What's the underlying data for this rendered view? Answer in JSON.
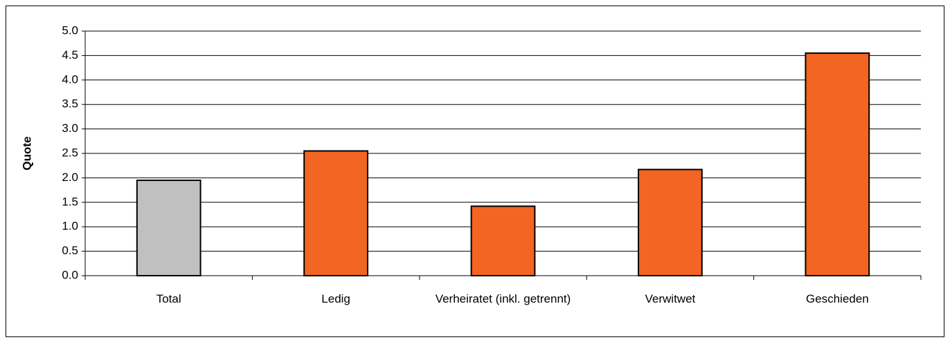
{
  "chart_data": {
    "type": "bar",
    "y_label": "Quote",
    "categories": [
      "Total",
      "Ledig",
      "Verheiratet (inkl. getrennt)",
      "Verwitwet",
      "Geschieden"
    ],
    "values": [
      1.95,
      2.55,
      1.42,
      2.17,
      4.55
    ],
    "colors": [
      "#c0c0c0",
      "#f26522",
      "#f26522",
      "#f26522",
      "#f26522"
    ],
    "ylim": [
      0,
      5
    ],
    "yticks": [
      {
        "value": 0,
        "label": "0.0"
      },
      0.5,
      {
        "value": 1,
        "label": "1.0"
      },
      1.5,
      {
        "value": 2,
        "label": "2.0"
      },
      2.5,
      {
        "value": 3,
        "label": "3.0"
      },
      3.5,
      {
        "value": 4,
        "label": "4.0"
      },
      4.5,
      {
        "value": 5,
        "label": "5.0"
      }
    ],
    "grid": true
  }
}
